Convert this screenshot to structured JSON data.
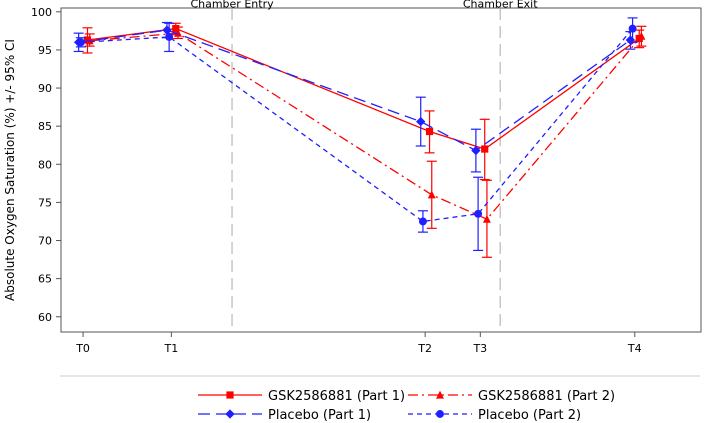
{
  "chart_data": {
    "type": "line",
    "ylabel": "Absolute Oxygen Saturation (%) +/- 95% CI",
    "xlabel": "",
    "ylim": [
      58,
      100.5
    ],
    "yticks": [
      60,
      65,
      70,
      75,
      80,
      85,
      90,
      95,
      100
    ],
    "xlim": [
      -0.2,
      5.6
    ],
    "categories": [
      {
        "label": "T0",
        "x": 0
      },
      {
        "label": "T1",
        "x": 0.8
      },
      {
        "label": "T2",
        "x": 3.1
      },
      {
        "label": "T3",
        "x": 3.6
      },
      {
        "label": "T4",
        "x": 5.0
      }
    ],
    "reference_lines": [
      {
        "label": "Chamber Entry",
        "x": 1.35
      },
      {
        "label": "Chamber Exit",
        "x": 3.78
      }
    ],
    "grid": false,
    "legend_position": "bottom",
    "series": [
      {
        "name": "GSK2586881 (Part 1)",
        "color": "#ff0000",
        "dash": "solid",
        "marker": "square",
        "x_offset": 0.04,
        "values": [
          96.3,
          97.8,
          84.3,
          82.0,
          96.5
        ],
        "ci_low": [
          94.6,
          97.0,
          81.5,
          78.0,
          95.3
        ],
        "ci_high": [
          97.9,
          98.5,
          87.0,
          85.9,
          97.6
        ]
      },
      {
        "name": "GSK2586881 (Part 2)",
        "color": "#ff0000",
        "dash": "dashdot",
        "marker": "triangle",
        "x_offset": 0.06,
        "values": [
          96.2,
          97.2,
          76.0,
          72.8,
          96.8
        ],
        "ci_low": [
          95.5,
          96.5,
          71.6,
          67.8,
          95.5
        ],
        "ci_high": [
          97.1,
          98.0,
          80.4,
          77.9,
          98.1
        ]
      },
      {
        "name": "Placebo (Part 1)",
        "color": "#1f1fff",
        "dash": "longdash",
        "marker": "diamond",
        "x_offset": -0.04,
        "values": [
          96.0,
          97.6,
          85.6,
          81.8,
          96.3
        ],
        "ci_low": [
          94.8,
          96.6,
          82.4,
          79.0,
          95.1
        ],
        "ci_high": [
          97.2,
          98.6,
          88.8,
          84.6,
          97.4
        ]
      },
      {
        "name": "Placebo (Part 2)",
        "color": "#1f1fff",
        "dash": "shortdash",
        "marker": "circle",
        "x_offset": -0.02,
        "values": [
          96.0,
          96.7,
          72.5,
          73.5,
          97.8
        ],
        "ci_low": [
          95.4,
          94.8,
          71.1,
          68.7,
          96.0
        ],
        "ci_high": [
          96.6,
          98.5,
          73.9,
          78.3,
          99.2
        ]
      }
    ]
  }
}
